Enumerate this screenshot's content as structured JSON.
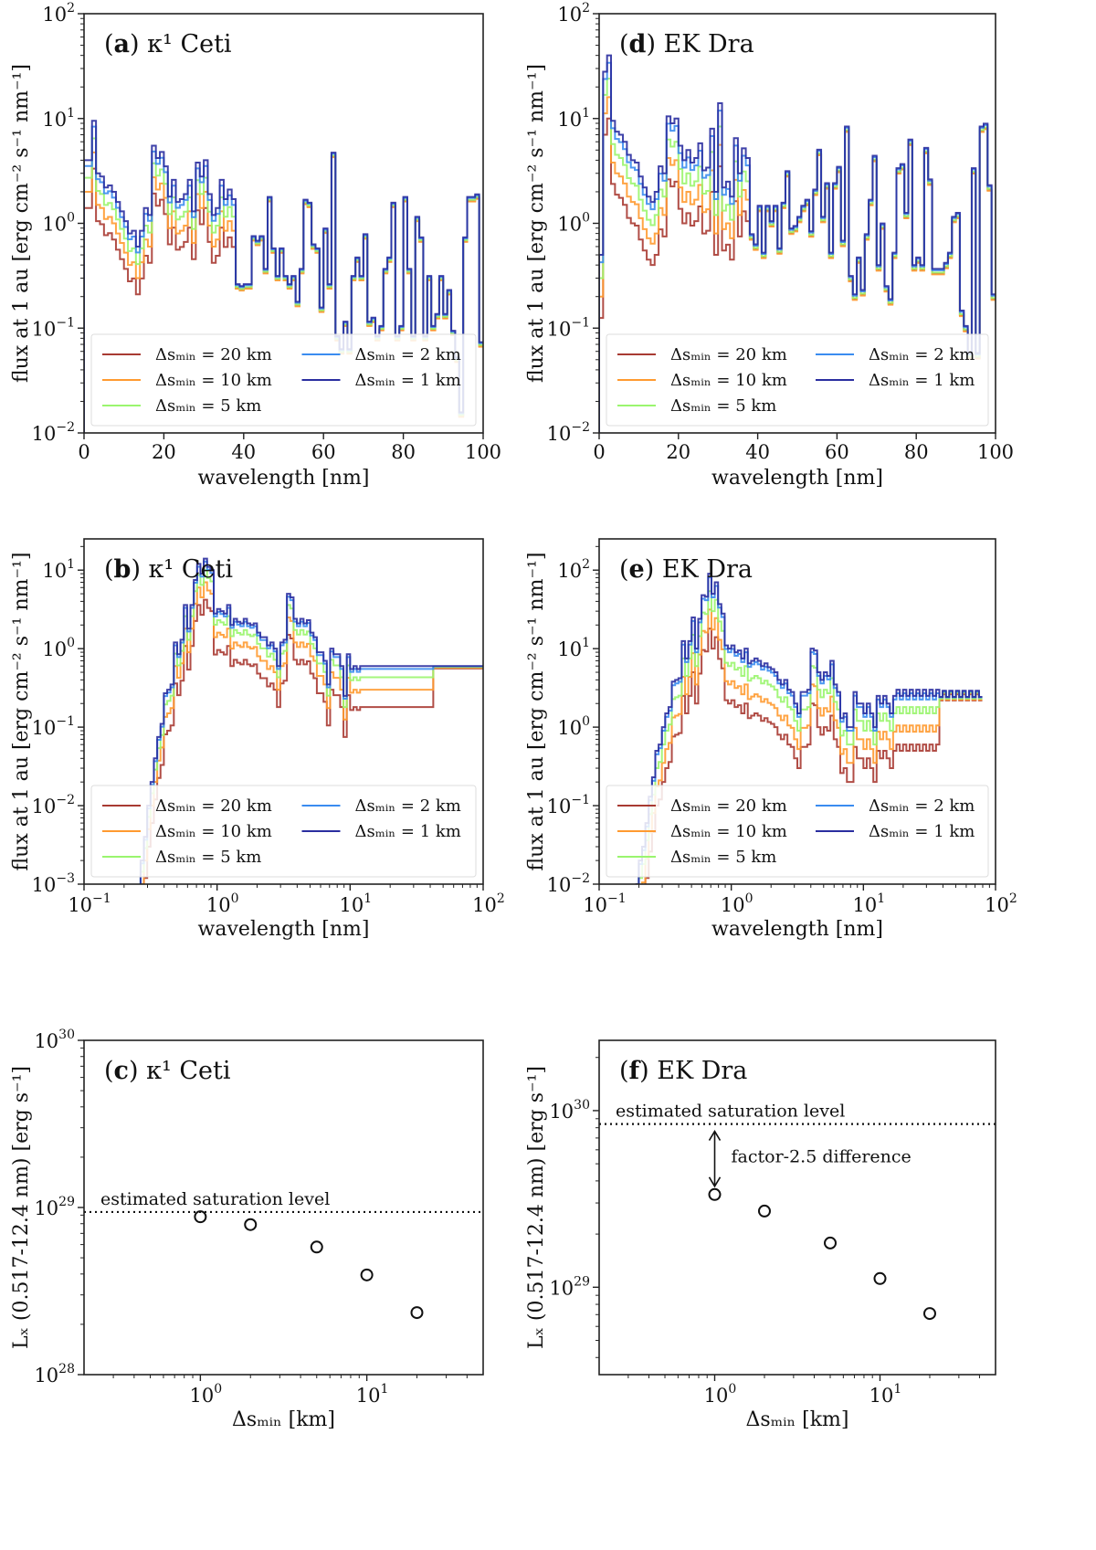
{
  "figure": {
    "legend_labels": [
      "Δs_min = 20 km",
      "Δs_min = 10 km",
      "Δs_min = 5 km",
      "Δs_min = 2 km",
      "Δs_min = 1 km"
    ],
    "series_colors": [
      "#a83a32",
      "#ff9a30",
      "#9af56e",
      "#3a8cf0",
      "#2a2ea0"
    ]
  },
  "chart_data": [
    {
      "id": "a",
      "type": "line",
      "style": "step",
      "title": "(a) κ¹ Ceti",
      "title_bold": "a",
      "title_rest": "κ¹ Ceti",
      "xlabel": "wavelength [nm]",
      "ylabel": "flux at 1 au [erg cm⁻² s⁻¹ nm⁻¹]",
      "xscale": "linear",
      "yscale": "log",
      "xlim": [
        0,
        100
      ],
      "ylim": [
        0.01,
        100
      ],
      "xticks": [
        0,
        20,
        40,
        60,
        80,
        100
      ],
      "yticks": [
        -2,
        -1,
        0,
        1,
        2
      ],
      "legend": "lower-center",
      "series": [
        {
          "name": "Δs_min = 20 km",
          "values_1km_ratio": 0.35
        },
        {
          "name": "Δs_min = 10 km",
          "values_1km_ratio": 0.5
        },
        {
          "name": "Δs_min = 5 km",
          "values_1km_ratio": 0.68
        },
        {
          "name": "Δs_min = 2 km",
          "values_1km_ratio": 0.88
        },
        {
          "name": "Δs_min = 1 km",
          "values_1km_ratio": 1.0
        }
      ],
      "x": [
        0,
        1,
        2,
        3,
        4,
        5,
        6,
        7,
        8,
        9,
        10,
        11,
        12,
        13,
        14,
        15,
        16,
        17,
        18,
        19,
        20,
        21,
        22,
        23,
        24,
        25,
        26,
        27,
        28,
        29,
        30,
        31,
        32,
        33,
        34,
        35,
        36,
        37,
        38,
        39,
        40,
        41,
        42,
        43,
        44,
        45,
        46,
        47,
        48,
        49,
        50,
        51,
        52,
        53,
        54,
        55,
        56,
        57,
        58,
        59,
        60,
        61,
        62,
        63,
        64,
        65,
        66,
        67,
        68,
        69,
        70,
        71,
        72,
        73,
        74,
        75,
        76,
        77,
        78,
        79,
        80,
        81,
        82,
        83,
        84,
        85,
        86,
        87,
        88,
        89,
        90,
        91,
        92,
        93,
        94,
        95,
        96,
        97,
        98,
        99
      ],
      "y_1km": [
        4,
        4,
        9.5,
        3,
        2.8,
        2.2,
        2.3,
        2,
        1.6,
        1.3,
        1.05,
        0.8,
        0.85,
        0.6,
        0.85,
        1.4,
        1.2,
        5.5,
        4.2,
        4.8,
        3.5,
        1.8,
        2.6,
        1.6,
        1.7,
        1.9,
        2.6,
        1.3,
        3.8,
        2.8,
        4,
        1.9,
        1.2,
        1.4,
        2.6,
        1.7,
        2.1,
        1.7,
        0.25,
        0.24,
        0.25,
        0.25,
        0.72,
        0.65,
        0.72,
        0.35,
        1.7,
        0.55,
        0.3,
        0.55,
        0.3,
        0.25,
        0.3,
        0.17,
        0.35,
        1.6,
        1.5,
        0.6,
        0.55,
        0.15,
        0.85,
        0.25,
        4.5,
        0.08,
        0.06,
        0.11,
        0.06,
        0.3,
        0.45,
        0.3,
        0.75,
        0.11,
        0.12,
        0.08,
        0.1,
        0.35,
        0.45,
        1.5,
        0.08,
        0.1,
        1.7,
        0.35,
        0.08,
        1.1,
        0.7,
        0.08,
        0.3,
        0.1,
        0.13,
        0.3,
        0.13,
        0.22,
        0.09,
        0.05,
        0.015,
        0.7,
        1.7,
        1.7,
        1.8,
        0.07
      ]
    },
    {
      "id": "b",
      "type": "line",
      "style": "step",
      "title": "(b) κ¹ Ceti",
      "title_bold": "b",
      "title_rest": "κ¹ Ceti",
      "xlabel": "wavelength [nm]",
      "ylabel": "flux at 1 au [erg cm⁻² s⁻¹ nm⁻¹]",
      "xscale": "log",
      "yscale": "log",
      "xlim": [
        0.1,
        100
      ],
      "ylim": [
        0.001,
        25
      ],
      "xticks": [
        -1,
        0,
        1,
        2
      ],
      "yticks": [
        -3,
        -2,
        -1,
        0,
        1
      ],
      "legend": "lower-center",
      "series": [
        {
          "name": "Δs_min = 20 km",
          "values_1km_ratio": 0.3
        },
        {
          "name": "Δs_min = 10 km",
          "values_1km_ratio": 0.5
        },
        {
          "name": "Δs_min = 5 km",
          "values_1km_ratio": 0.72
        },
        {
          "name": "Δs_min = 2 km",
          "values_1km_ratio": 0.92
        },
        {
          "name": "Δs_min = 1 km",
          "values_1km_ratio": 1.0
        }
      ],
      "logx": [
        -0.6,
        -0.575,
        -0.55,
        -0.525,
        -0.5,
        -0.475,
        -0.45,
        -0.425,
        -0.4,
        -0.375,
        -0.35,
        -0.325,
        -0.3,
        -0.275,
        -0.25,
        -0.225,
        -0.2,
        -0.175,
        -0.15,
        -0.125,
        -0.1,
        -0.075,
        -0.05,
        -0.025,
        0,
        0.025,
        0.05,
        0.075,
        0.1,
        0.125,
        0.15,
        0.175,
        0.2,
        0.225,
        0.25,
        0.275,
        0.3,
        0.325,
        0.35,
        0.375,
        0.4,
        0.425,
        0.45,
        0.475,
        0.5,
        0.525,
        0.55,
        0.575,
        0.6,
        0.625,
        0.65,
        0.675,
        0.7,
        0.725,
        0.75,
        0.775,
        0.8,
        0.825,
        0.85,
        0.875,
        0.9,
        0.925,
        0.95,
        0.975,
        1,
        1.025,
        1.05,
        1.075,
        1.1,
        1.125,
        1.15,
        1.175,
        1.2,
        1.225,
        1.25,
        1.275,
        1.3,
        1.325,
        1.35,
        1.375,
        1.4,
        1.425,
        1.45,
        1.475,
        1.5,
        1.525,
        1.55,
        1.575,
        1.6,
        1.625,
        1.65,
        1.675,
        1.7,
        1.725,
        1.75,
        1.775,
        1.8,
        1.825,
        1.85,
        1.875,
        1.9,
        1.925,
        1.95,
        1.975
      ],
      "y_1km": [
        0.0005,
        0.002,
        0.004,
        0.01,
        0.02,
        0.04,
        0.075,
        0.11,
        0.27,
        0.3,
        0.35,
        1.2,
        0.85,
        1.3,
        3.6,
        1.8,
        3.6,
        7.5,
        12,
        9,
        14,
        11,
        10,
        2.8,
        3.2,
        3,
        2.8,
        3.6,
        2,
        2.4,
        2.2,
        2.1,
        2.4,
        2.1,
        2,
        2.1,
        1.6,
        1.4,
        1.4,
        1.1,
        1.2,
        1,
        0.6,
        1.2,
        1.3,
        5,
        4.5,
        2.4,
        2.1,
        2.4,
        2.1,
        2.3,
        1.6,
        1.4,
        0.9,
        0.9,
        0.7,
        0.35,
        1,
        0.85,
        0.85,
        0.6,
        0.25,
        0.85,
        0.55,
        0.6,
        0.55,
        0.6,
        0.6,
        0.6,
        0.6,
        0.6,
        0.6,
        0.6,
        0.6,
        0.6,
        0.6,
        0.6,
        0.6,
        0.6,
        0.6,
        0.6,
        0.6,
        0.6,
        0.6,
        0.6,
        0.6,
        0.6,
        0.6,
        0.6,
        0.6,
        0.6,
        0.6,
        0.6,
        0.6,
        0.6,
        0.6,
        0.6,
        0.6,
        0.6,
        0.6,
        0.6,
        0.6,
        0.6
      ]
    },
    {
      "id": "c",
      "type": "scatter",
      "title": "(c) κ¹ Ceti",
      "title_bold": "c",
      "title_rest": "κ¹ Ceti",
      "xlabel": "Δs_min [km]",
      "ylabel": "L_X (0.517-12.4 nm) [erg s⁻¹]",
      "xscale": "log",
      "yscale": "log",
      "xlim": [
        0.2,
        50
      ],
      "ylim": [
        1e+28,
        1e+30
      ],
      "xticks": [
        0,
        1
      ],
      "yticks": [
        28,
        29,
        30
      ],
      "x": [
        1,
        2,
        5,
        10,
        20
      ],
      "y": [
        8.8e+28,
        7.9e+28,
        5.8e+28,
        3.95e+28,
        2.35e+28
      ],
      "saturation_level": 9.4e+28,
      "annotation": "estimated saturation level"
    },
    {
      "id": "d",
      "type": "line",
      "style": "step",
      "title": "(d) EK Dra",
      "title_bold": "d",
      "title_rest": "EK Dra",
      "xlabel": "wavelength [nm]",
      "ylabel": "flux at 1 au [erg cm⁻² s⁻¹ nm⁻¹]",
      "xscale": "linear",
      "yscale": "log",
      "xlim": [
        0,
        100
      ],
      "ylim": [
        0.01,
        100
      ],
      "xticks": [
        0,
        20,
        40,
        60,
        80,
        100
      ],
      "yticks": [
        -2,
        -1,
        0,
        1,
        2
      ],
      "legend": "lower-center",
      "series": [
        {
          "name": "Δs_min = 20 km",
          "values_1km_ratio": 0.25
        },
        {
          "name": "Δs_min = 10 km",
          "values_1km_ratio": 0.4
        },
        {
          "name": "Δs_min = 5 km",
          "values_1km_ratio": 0.6
        },
        {
          "name": "Δs_min = 2 km",
          "values_1km_ratio": 0.85
        },
        {
          "name": "Δs_min = 1 km",
          "values_1km_ratio": 1.0
        }
      ],
      "x": [
        0,
        1,
        2,
        3,
        4,
        5,
        6,
        7,
        8,
        9,
        10,
        11,
        12,
        13,
        14,
        15,
        16,
        17,
        18,
        19,
        20,
        21,
        22,
        23,
        24,
        25,
        26,
        27,
        28,
        29,
        30,
        31,
        32,
        33,
        34,
        35,
        36,
        37,
        38,
        39,
        40,
        41,
        42,
        43,
        44,
        45,
        46,
        47,
        48,
        49,
        50,
        51,
        52,
        53,
        54,
        55,
        56,
        57,
        58,
        59,
        60,
        61,
        62,
        63,
        64,
        65,
        66,
        67,
        68,
        69,
        70,
        71,
        72,
        73,
        74,
        75,
        76,
        77,
        78,
        79,
        80,
        81,
        82,
        83,
        84,
        85,
        86,
        87,
        88,
        89,
        90,
        91,
        92,
        93,
        94,
        95,
        96,
        97,
        98,
        99
      ],
      "y_1km": [
        0.5,
        28,
        40,
        9.5,
        7.5,
        7,
        6,
        4.5,
        4,
        3.8,
        2.8,
        2.2,
        1.8,
        1.6,
        2,
        3.5,
        3,
        10.5,
        9,
        10,
        5.5,
        4,
        5,
        3.8,
        4.2,
        5.8,
        3.2,
        3.4,
        8,
        2,
        14,
        2.2,
        2.5,
        1.8,
        6.5,
        3,
        5.2,
        4.2,
        0.75,
        0.6,
        1.4,
        0.5,
        1.4,
        1,
        1.4,
        0.55,
        1.5,
        3,
        0.85,
        0.9,
        1.1,
        1.4,
        1.6,
        0.8,
        2,
        4.8,
        1.1,
        2.3,
        0.5,
        2.3,
        3.3,
        0.65,
        8,
        0.3,
        0.2,
        0.45,
        0.22,
        0.75,
        1.6,
        4.2,
        0.38,
        0.95,
        0.24,
        0.18,
        0.5,
        3.2,
        3.5,
        1.2,
        6,
        0.38,
        0.45,
        0.38,
        5,
        2.5,
        0.35,
        0.35,
        0.35,
        0.4,
        0.5,
        1.1,
        1.2,
        0.14,
        0.1,
        0.055,
        3.2,
        0.055,
        8,
        8.5,
        2.2,
        0.2
      ]
    },
    {
      "id": "e",
      "type": "line",
      "style": "step",
      "title": "(e) EK Dra",
      "title_bold": "e",
      "title_rest": "EK Dra",
      "xlabel": "wavelength [nm]",
      "ylabel": "flux at 1 au [erg cm⁻² s⁻¹ nm⁻¹]",
      "xscale": "log",
      "yscale": "log",
      "xlim": [
        0.1,
        100
      ],
      "ylim": [
        0.01,
        250
      ],
      "xticks": [
        -1,
        0,
        1,
        2
      ],
      "yticks": [
        -2,
        -1,
        0,
        1,
        2
      ],
      "legend": "lower-center",
      "series": [
        {
          "name": "Δs_min = 20 km",
          "values_1km_ratio": 0.2
        },
        {
          "name": "Δs_min = 10 km",
          "values_1km_ratio": 0.35
        },
        {
          "name": "Δs_min = 5 km",
          "values_1km_ratio": 0.6
        },
        {
          "name": "Δs_min = 2 km",
          "values_1km_ratio": 0.9
        },
        {
          "name": "Δs_min = 1 km",
          "values_1km_ratio": 1.0
        }
      ],
      "logx": [
        -0.725,
        -0.7,
        -0.675,
        -0.65,
        -0.625,
        -0.6,
        -0.575,
        -0.55,
        -0.525,
        -0.5,
        -0.475,
        -0.45,
        -0.425,
        -0.4,
        -0.375,
        -0.35,
        -0.325,
        -0.3,
        -0.275,
        -0.25,
        -0.225,
        -0.2,
        -0.175,
        -0.15,
        -0.125,
        -0.1,
        -0.075,
        -0.05,
        -0.025,
        0,
        0.025,
        0.05,
        0.075,
        0.1,
        0.125,
        0.15,
        0.175,
        0.2,
        0.225,
        0.25,
        0.275,
        0.3,
        0.325,
        0.35,
        0.375,
        0.4,
        0.425,
        0.45,
        0.475,
        0.5,
        0.525,
        0.55,
        0.575,
        0.6,
        0.625,
        0.65,
        0.675,
        0.7,
        0.725,
        0.75,
        0.775,
        0.8,
        0.825,
        0.85,
        0.875,
        0.9,
        0.925,
        0.95,
        0.975,
        1,
        1.025,
        1.05,
        1.075,
        1.1,
        1.125,
        1.15,
        1.175,
        1.2,
        1.225,
        1.25,
        1.275,
        1.3,
        1.325,
        1.35,
        1.375,
        1.4,
        1.425,
        1.45,
        1.475,
        1.5,
        1.525,
        1.55,
        1.575,
        1.6,
        1.625,
        1.65,
        1.675,
        1.7,
        1.725,
        1.75,
        1.775,
        1.8,
        1.825,
        1.85,
        1.875,
        1.9,
        1.925,
        1.95,
        1.975
      ],
      "y_1km": [
        0.01,
        0.02,
        0.03,
        0.06,
        0.13,
        0.23,
        0.5,
        0.6,
        1,
        1.5,
        1.8,
        3.8,
        4,
        4.2,
        12.5,
        7.5,
        12.5,
        25,
        10,
        24,
        48,
        46,
        90,
        50,
        70,
        37,
        28,
        11,
        10,
        11,
        9,
        9.5,
        7.5,
        10,
        6.5,
        7,
        7.5,
        7,
        6,
        6.5,
        5.8,
        5.5,
        5,
        4,
        3.5,
        4,
        3,
        2.8,
        2,
        1.5,
        2.8,
        2.8,
        3,
        10,
        9.5,
        5,
        4,
        5,
        4.5,
        7,
        3.5,
        2.8,
        1.3,
        1.5,
        1,
        1,
        2.8,
        2,
        2,
        1.5,
        2,
        1.5,
        1,
        2.5,
        2,
        2.5,
        2,
        1.5,
        2.5,
        3,
        2.5,
        3,
        2.5,
        3,
        2.5,
        3,
        2.5,
        3,
        2.5,
        3,
        2.5,
        3,
        2.5,
        3,
        2.5,
        3,
        2.5,
        3,
        2.5,
        3,
        2.5,
        3,
        2.5,
        3,
        2.5
      ]
    },
    {
      "id": "f",
      "type": "scatter",
      "title": "(f) EK Dra",
      "title_bold": "f",
      "title_rest": "EK Dra",
      "xlabel": "Δs_min [km]",
      "ylabel": "L_X (0.517-12.4 nm) [erg s⁻¹]",
      "xscale": "log",
      "yscale": "log",
      "xlim": [
        0.2,
        50
      ],
      "ylim": [
        3.2e+28,
        2.5e+30
      ],
      "xticks": [
        0,
        1
      ],
      "yticks": [
        29,
        30
      ],
      "x": [
        1,
        2,
        5,
        10,
        20
      ],
      "y": [
        3.35e+29,
        2.7e+29,
        1.78e+29,
        1.12e+29,
        7.1e+28
      ],
      "saturation_level": 8.4e+29,
      "annotation": "estimated saturation level",
      "arrow_annotation": "factor-2.5 difference"
    }
  ]
}
